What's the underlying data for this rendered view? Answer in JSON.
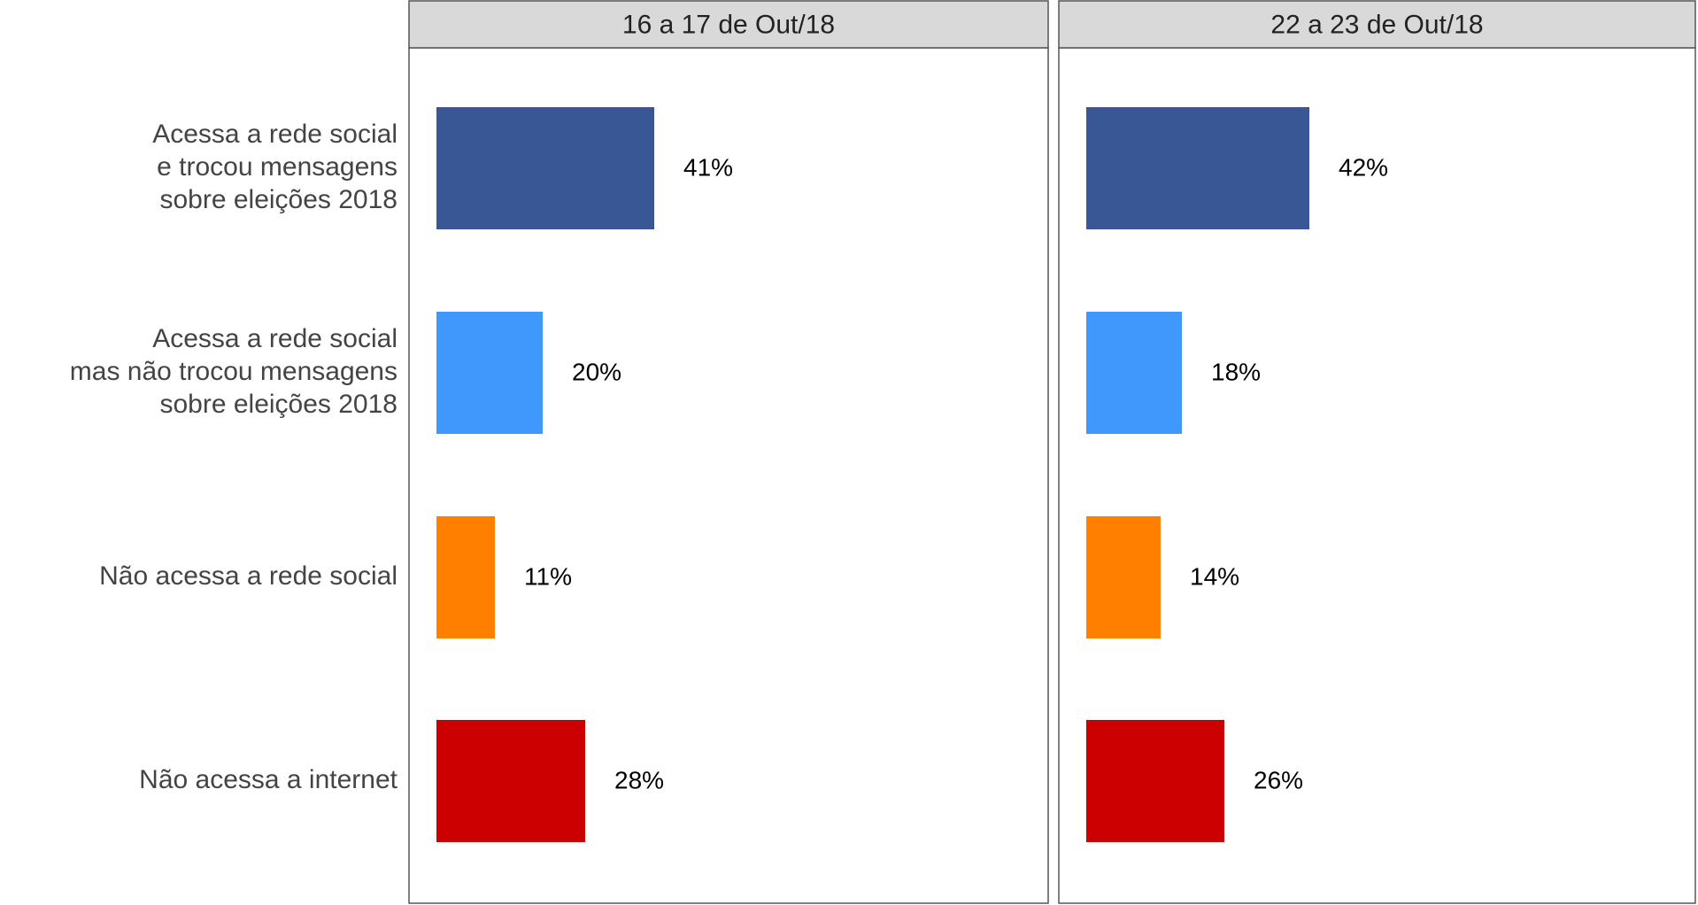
{
  "chart_data": [
    {
      "type": "bar",
      "title": "16 a 17 de Out/18",
      "categories": [
        "Acessa a rede social\ne trocou mensagens\nsobre eleições 2018",
        "Acessa a rede social\nmas não trocou mensagens\nsobre eleições 2018",
        "Não acessa a rede social",
        "Não acessa a internet"
      ],
      "values": [
        41,
        20,
        11,
        28
      ],
      "value_labels": [
        "41%",
        "20%",
        "11%",
        "28%"
      ],
      "colors": [
        "#3a5795",
        "#4198fc",
        "#ff8000",
        "#cc0000"
      ]
    },
    {
      "type": "bar",
      "title": "22 a 23 de Out/18",
      "values": [
        42,
        18,
        14,
        26
      ],
      "value_labels": [
        "42%",
        "18%",
        "14%",
        "26%"
      ],
      "colors": [
        "#3a5795",
        "#4198fc",
        "#ff8000",
        "#cc0000"
      ]
    }
  ]
}
